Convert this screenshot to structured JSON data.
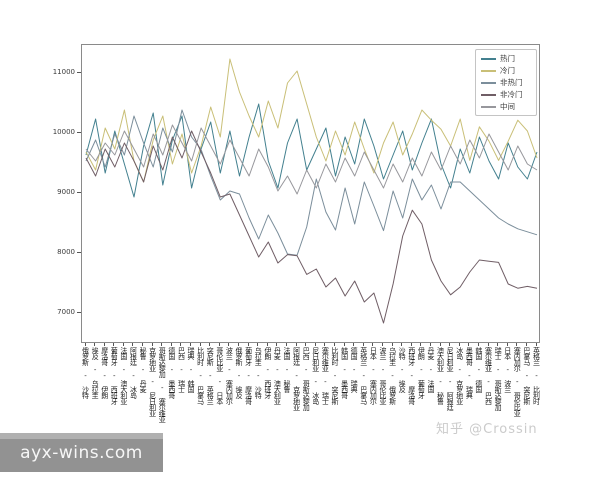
{
  "watermarks": {
    "zhihu": "知乎 @Crossin",
    "site": "ayx-wins.com"
  },
  "chart_data": {
    "type": "line",
    "title": "",
    "xlabel": "",
    "ylabel": "",
    "ylim": [
      6500,
      11483
    ],
    "yticks": [
      7000,
      8000,
      9000,
      10000,
      11000
    ],
    "grid": false,
    "legend_position": "upper right",
    "categories": [
      "俄罗斯 - 沙特",
      "埃及 - 乌拉圭",
      "摩洛哥 - 伊朗",
      "葡萄牙 - 西班牙",
      "法国 - 澳大利亚",
      "阿根廷 - 冰岛",
      "秘鲁 - 丹麦",
      "克罗地亚 - 尼日利亚",
      "哥斯达黎加 - 塞尔维亚",
      "德国 - 墨西哥",
      "巴西 - 瑞士",
      "瑞典 - 韩国",
      "比利时 - 巴拿马",
      "突尼斯 - 英格兰",
      "哥伦比亚 - 日本",
      "波兰 - 塞内加尔",
      "俄罗斯 - 埃及",
      "葡萄牙 - 摩洛哥",
      "乌拉圭 - 沙特",
      "伊朗 - 西班牙",
      "丹麦 - 澳大利亚",
      "法国 - 秘鲁",
      "阿根廷 - 克罗地亚",
      "巴西 - 哥斯达黎加",
      "尼日利亚 - 冰岛",
      "塞尔维亚 - 瑞士",
      "比利时 - 突尼斯",
      "韩国 - 墨西哥",
      "德国 - 瑞典",
      "英格兰 - 巴拿马",
      "日本 - 塞内加尔",
      "波兰 - 哥伦比亚",
      "乌拉圭 - 俄罗斯",
      "沙特 - 埃及",
      "西班牙 - 摩洛哥",
      "伊朗 - 葡萄牙",
      "丹麦 - 法国",
      "澳大利亚 - 秘鲁",
      "尼日利亚 - 阿根廷",
      "冰岛 - 克罗地亚",
      "墨西哥 - 瑞典",
      "韩国 - 德国",
      "塞尔维亚 - 巴西",
      "瑞士 - 哥斯达黎加",
      "日本 - 波兰",
      "塞内加尔 - 哥伦比亚",
      "巴拿马 - 突尼斯",
      "英格兰 - 比利时"
    ],
    "series": [
      {
        "name": "热门",
        "color": "#43808f",
        "values": [
          9650,
          10250,
          9350,
          10050,
          9500,
          8950,
          9800,
          10350,
          9150,
          9900,
          10300,
          9100,
          9750,
          10200,
          9350,
          10050,
          9300,
          9950,
          10500,
          9550,
          9100,
          9850,
          10250,
          9400,
          9750,
          10100,
          9300,
          9950,
          9500,
          10250,
          9800,
          9250,
          9650,
          10050,
          9400,
          9850,
          10250,
          9500,
          9100,
          9750,
          9350,
          9950,
          9550,
          9250,
          9850,
          9450,
          9250,
          9700
        ]
      },
      {
        "name": "冷门",
        "color": "#c9bf77",
        "values": [
          9700,
          9400,
          10100,
          9750,
          10400,
          9550,
          9200,
          9900,
          10300,
          9500,
          10000,
          9350,
          9800,
          10450,
          9950,
          11250,
          10700,
          10300,
          9950,
          10550,
          10100,
          10850,
          11050,
          10500,
          9950,
          9550,
          10050,
          9650,
          10200,
          9750,
          9350,
          9850,
          10200,
          9650,
          10000,
          10400,
          10230,
          10080,
          9800,
          10250,
          9560,
          10120,
          9880,
          9560,
          9880,
          10230,
          10050,
          9600
        ]
      },
      {
        "name": "非热门",
        "color": "#7b8e9b",
        "values": [
          9550,
          9900,
          9450,
          10000,
          9650,
          10300,
          9850,
          9450,
          10100,
          9700,
          10400,
          9950,
          9740,
          9300,
          8900,
          9050,
          9000,
          8600,
          8250,
          8650,
          8350,
          8000,
          7980,
          8450,
          9250,
          8700,
          8400,
          9100,
          8500,
          9200,
          8800,
          8390,
          9050,
          8600,
          9250,
          8900,
          9150,
          8750,
          9200,
          9200,
          9050,
          8900,
          8750,
          8600,
          8500,
          8420,
          8370,
          8320
        ]
      },
      {
        "name": "非冷门",
        "color": "#705e66",
        "values": [
          9600,
          9300,
          9750,
          9450,
          9850,
          9550,
          9200,
          9800,
          9400,
          9950,
          9600,
          10050,
          9700,
          9350,
          8950,
          9000,
          8650,
          8300,
          7950,
          8200,
          7850,
          7990,
          7970,
          7660,
          7750,
          7450,
          7600,
          7300,
          7550,
          7200,
          7350,
          6850,
          7500,
          8300,
          8730,
          8500,
          7900,
          7550,
          7320,
          7450,
          7700,
          7900,
          7880,
          7860,
          7500,
          7430,
          7460,
          7430
        ]
      },
      {
        "name": "中间",
        "color": "#97979c",
        "values": [
          9750,
          9550,
          9850,
          9650,
          10050,
          9750,
          9450,
          10000,
          9650,
          10150,
          9850,
          9550,
          10100,
          9800,
          9500,
          9900,
          9600,
          9300,
          9750,
          9450,
          9050,
          9300,
          9000,
          9400,
          9100,
          9500,
          9200,
          9600,
          9300,
          9700,
          9400,
          9100,
          9500,
          9200,
          9600,
          9300,
          9700,
          9400,
          9800,
          9500,
          9900,
          9600,
          10000,
          9700,
          9400,
          9800,
          9500,
          9400
        ]
      }
    ]
  }
}
